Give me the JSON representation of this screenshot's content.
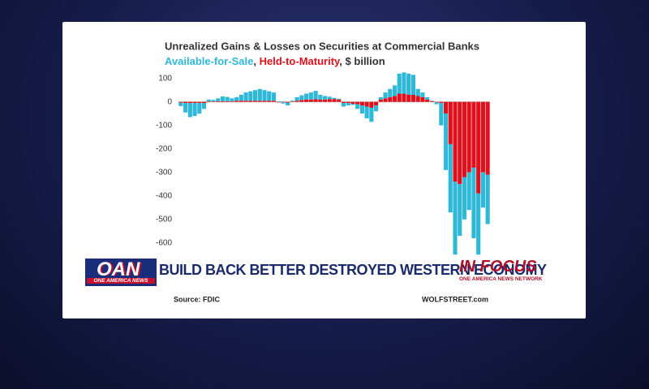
{
  "chart_data": {
    "type": "bar",
    "stacked": true,
    "title": "Unrealized Gains & Losses on Securities at Commercial Banks",
    "legend_separator": ",",
    "unit": "$ billion",
    "series": [
      {
        "name": "Available-for-Sale",
        "color": "#2fb8d8",
        "values": [
          -15,
          -40,
          -60,
          -55,
          -45,
          -25,
          8,
          6,
          12,
          20,
          18,
          12,
          15,
          25,
          35,
          40,
          45,
          50,
          45,
          40,
          35,
          2,
          -5,
          -12,
          3,
          15,
          20,
          25,
          30,
          35,
          20,
          15,
          10,
          5,
          3,
          -15,
          -10,
          -5,
          -20,
          -35,
          -50,
          -60,
          -25,
          10,
          25,
          35,
          45,
          85,
          90,
          90,
          85,
          30,
          20,
          10,
          2,
          -8,
          -95,
          -240,
          -290,
          -310,
          -220,
          -180,
          -160,
          -300,
          -260,
          -150,
          -210
        ]
      },
      {
        "name": "Held-to-Maturity",
        "color": "#e0101c",
        "values": [
          -3,
          -5,
          -5,
          -5,
          -5,
          -5,
          2,
          2,
          3,
          3,
          3,
          3,
          5,
          5,
          5,
          5,
          5,
          5,
          5,
          5,
          5,
          -2,
          -2,
          -3,
          2,
          5,
          8,
          10,
          10,
          12,
          10,
          10,
          12,
          12,
          10,
          -5,
          -5,
          -8,
          -10,
          -15,
          -20,
          -25,
          -15,
          10,
          15,
          20,
          25,
          35,
          35,
          30,
          30,
          25,
          20,
          10,
          3,
          -2,
          -5,
          -50,
          -180,
          -340,
          -350,
          -320,
          -300,
          -280,
          -390,
          -300,
          -310
        ]
      }
    ],
    "ylim": [
      -670,
      130
    ],
    "yticks": [
      100,
      0,
      -100,
      -200,
      -300,
      -400,
      -500,
      -600
    ],
    "grid": false
  },
  "source": "Source: FDIC",
  "credit": "WOLFSTREET.com",
  "broadcast": {
    "logo": "OAN",
    "network": "ONE AMERICA NEWS",
    "headline": "BUILD BACK BETTER DESTROYED WESTERN ECONOMY",
    "segment": "IN FOCUS",
    "segment_network": "ONE AMERICA NEWS NETWORK"
  }
}
